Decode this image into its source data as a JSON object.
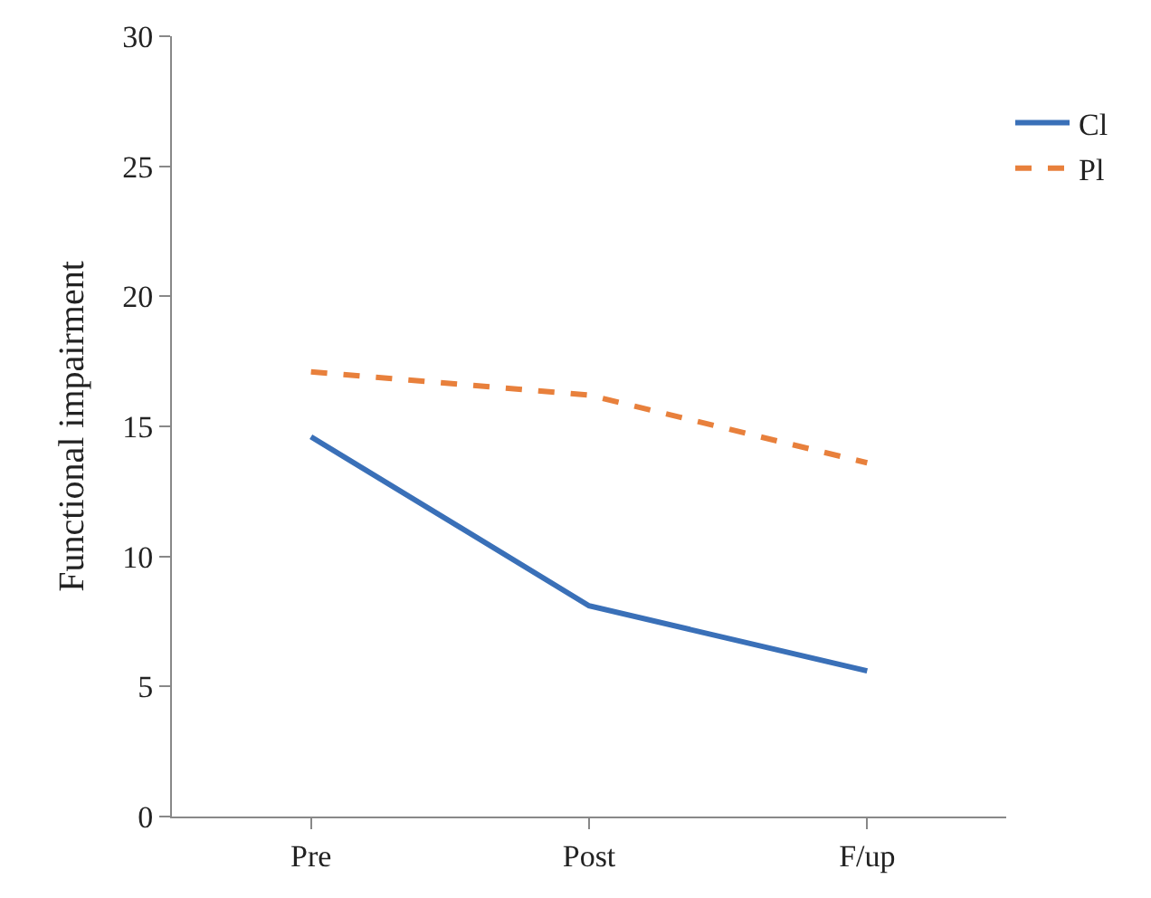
{
  "chart_data": {
    "type": "line",
    "ylabel": "Functional impairment",
    "categories": [
      "Pre",
      "Post",
      "F/up"
    ],
    "series": [
      {
        "name": "Cl",
        "color": "#3a70b8",
        "values": [
          14.6,
          8.1,
          5.6
        ],
        "line_style": "solid"
      },
      {
        "name": "Pl",
        "color": "#e8803c",
        "values": [
          17.1,
          16.2,
          13.6
        ],
        "line_style": "dashed"
      }
    ],
    "ylim": [
      0,
      30
    ],
    "yticks": [
      0,
      5,
      10,
      15,
      20,
      25,
      30
    ],
    "legend": "top right",
    "marker": "none"
  }
}
